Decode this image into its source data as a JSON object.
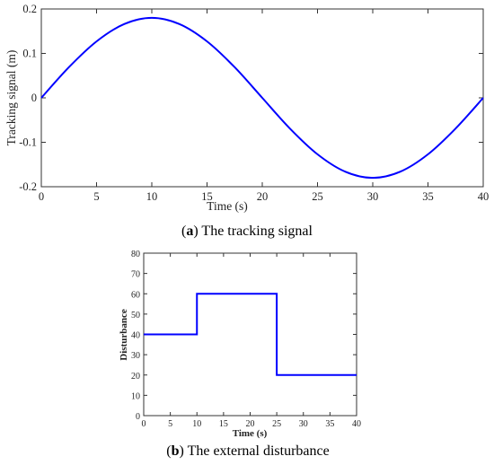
{
  "chart_data": [
    {
      "type": "line",
      "caption_letter": "a",
      "caption_text": "The tracking signal",
      "xlabel": "Time (s)",
      "ylabel": "Tracking signal (m)",
      "xlim": [
        0,
        40
      ],
      "ylim": [
        -0.2,
        0.2
      ],
      "xticks": [
        0,
        5,
        10,
        15,
        20,
        25,
        30,
        35,
        40
      ],
      "xtick_labels": [
        "0",
        "5",
        "10",
        "15",
        "20",
        "25",
        "30",
        "35",
        "40"
      ],
      "yticks": [
        -0.2,
        -0.1,
        0,
        0.1,
        0.2
      ],
      "ytick_labels": [
        "-0.2",
        "-0.1",
        "0",
        "0.1",
        "0.2"
      ],
      "grid": false,
      "series": [
        {
          "x": [
            0,
            2.5,
            5,
            7.5,
            10,
            12.5,
            15,
            17.5,
            20,
            22.5,
            25,
            27.5,
            30,
            32.5,
            35,
            37.5,
            40
          ],
          "y": [
            0,
            0.069,
            0.127,
            0.166,
            0.18,
            0.166,
            0.127,
            0.069,
            0,
            -0.069,
            -0.127,
            -0.166,
            -0.18,
            -0.166,
            -0.127,
            -0.069,
            0
          ],
          "color": "#0000ff"
        }
      ]
    },
    {
      "type": "line",
      "caption_letter": "b",
      "caption_text": "The external disturbance",
      "xlabel": "Time (s)",
      "ylabel": "Disturbance",
      "xlim": [
        0,
        40
      ],
      "ylim": [
        0,
        80
      ],
      "xticks": [
        0,
        5,
        10,
        15,
        20,
        25,
        30,
        35,
        40
      ],
      "xtick_labels": [
        "0",
        "5",
        "10",
        "15",
        "20",
        "25",
        "30",
        "35",
        "40"
      ],
      "yticks": [
        0,
        10,
        20,
        30,
        40,
        50,
        60,
        70,
        80
      ],
      "ytick_labels": [
        "0",
        "10",
        "20",
        "30",
        "40",
        "50",
        "60",
        "70",
        "80"
      ],
      "grid": false,
      "series": [
        {
          "x": [
            0,
            10,
            10,
            25,
            25,
            40
          ],
          "y": [
            40,
            40,
            60,
            60,
            20,
            20
          ],
          "color": "#0000ff"
        }
      ]
    }
  ]
}
